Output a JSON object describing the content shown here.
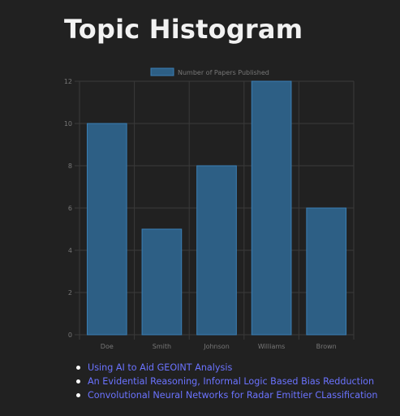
{
  "page": {
    "title": "Topic Histogram"
  },
  "chart_data": {
    "type": "bar",
    "title": "",
    "xlabel": "",
    "ylabel": "",
    "categories": [
      "Doe",
      "Smith",
      "Johnson",
      "Williams",
      "Brown"
    ],
    "series": [
      {
        "name": "Number of Papers Published",
        "values": [
          10,
          5,
          8,
          12,
          6
        ]
      }
    ],
    "ylim": [
      0,
      12
    ],
    "yticks": [
      "0",
      "2",
      "4",
      "6",
      "8",
      "10",
      "12"
    ],
    "grid": true,
    "legend": "top-center",
    "colors": {
      "bar_fill": "#2d5f85",
      "bar_stroke": "#3a7fb5",
      "grid": "#3a3a3a",
      "tick_text": "#777777"
    }
  },
  "links": {
    "items": [
      "Using AI to Aid GEOINT Analysis",
      "An Evidential Reasoning, Informal Logic Based Bias Redduction",
      "Convolutional Neural Networks for Radar Emittier CLassification"
    ],
    "color": "#6b73ff"
  }
}
